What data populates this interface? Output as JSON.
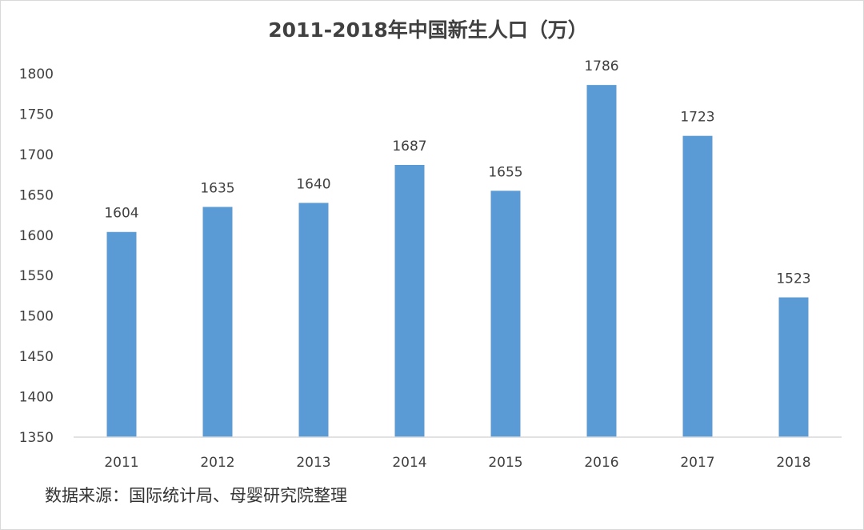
{
  "chart_data": {
    "type": "bar",
    "title": "2011-2018年中国新生人口（万）",
    "categories": [
      "2011",
      "2012",
      "2013",
      "2014",
      "2015",
      "2016",
      "2017",
      "2018"
    ],
    "values": [
      1604,
      1635,
      1640,
      1687,
      1655,
      1786,
      1723,
      1523
    ],
    "data_labels": [
      "1604",
      "1635",
      "1640",
      "1687",
      "1655",
      "1786",
      "1723",
      "1523"
    ],
    "xlabel": "",
    "ylabel": "",
    "ylim": [
      1350,
      1800
    ],
    "y_ticks": [
      "1350",
      "1400",
      "1450",
      "1500",
      "1550",
      "1600",
      "1650",
      "1700",
      "1750",
      "1800"
    ],
    "grid": false,
    "legend": "none",
    "bar_color": "#5B9BD5",
    "source_note": "数据来源：国际统计局、母婴研究院整理"
  }
}
